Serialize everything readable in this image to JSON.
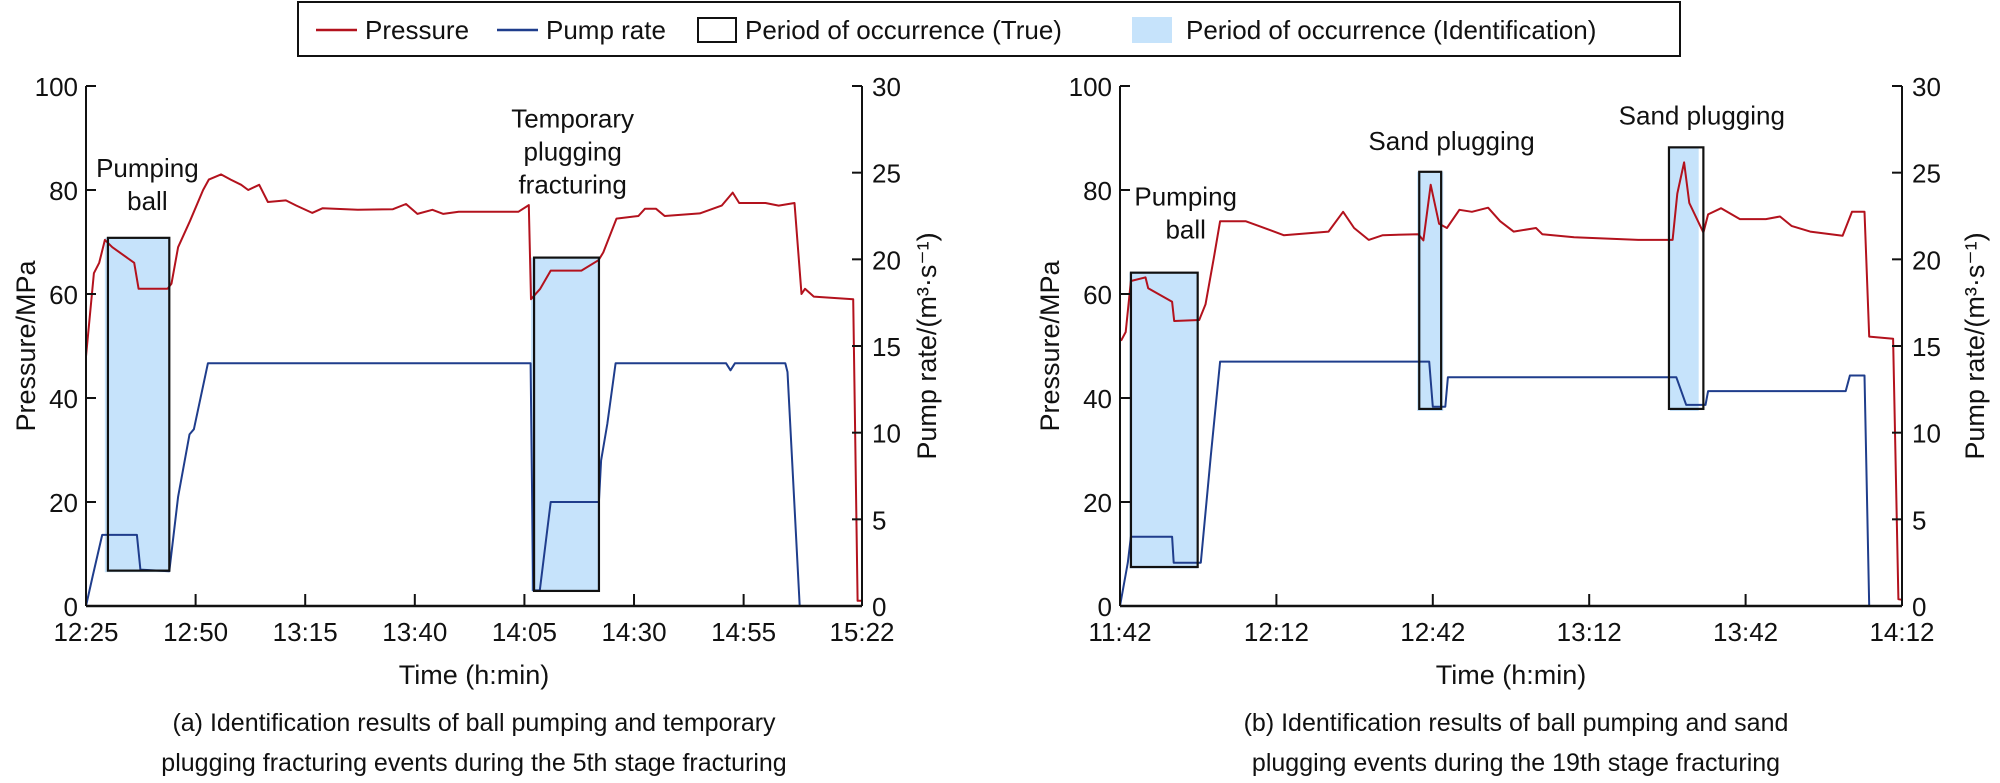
{
  "legend": {
    "pressure": "Pressure",
    "pump_rate": "Pump rate",
    "true_period": "Period of occurrence (True)",
    "identified_period": "Period of occurrence (Identification)"
  },
  "colors": {
    "pressure": "#b3121d",
    "pump_rate": "#1f3d8c",
    "identification_fill": "#c6e3fb",
    "true_outline": "#111111"
  },
  "chart_data": [
    {
      "type": "line",
      "caption_lines": [
        "(a) Identification results of ball pumping and temporary",
        "plugging fracturing events during the 5th stage fracturing"
      ],
      "xlabel": "Time (h:min)",
      "ylabel": "Pressure/MPa",
      "y2label": "Pump rate/(m³·s⁻¹)",
      "x_unit": "minutes after 12:25",
      "xlim": [
        0,
        177
      ],
      "x_ticks": [
        0,
        25,
        50,
        75,
        100,
        125,
        150,
        177
      ],
      "x_tick_labels": [
        "12:25",
        "12:50",
        "13:15",
        "13:40",
        "14:05",
        "14:30",
        "14:55",
        "15:22"
      ],
      "ylim": [
        0,
        100
      ],
      "y_ticks": [
        0,
        20,
        40,
        60,
        80,
        100
      ],
      "y_tick_labels": [
        "0",
        "20",
        "40",
        "60",
        "80",
        "100"
      ],
      "y2lim": [
        0,
        30
      ],
      "y2_ticks": [
        0,
        5,
        10,
        15,
        20,
        25,
        30
      ],
      "y2_tick_labels": [
        "0",
        "5",
        "10",
        "15",
        "20",
        "25",
        "30"
      ],
      "series": [
        {
          "name": "Pressure",
          "axis": "left",
          "points": [
            [
              0,
              48
            ],
            [
              1.8,
              64
            ],
            [
              3,
              66
            ],
            [
              4.3,
              70.4
            ],
            [
              6,
              69
            ],
            [
              11,
              66
            ],
            [
              12,
              61
            ],
            [
              18.6,
              61
            ],
            [
              19.5,
              62
            ],
            [
              21,
              69
            ],
            [
              23.7,
              74
            ],
            [
              26.7,
              80
            ],
            [
              28,
              82
            ],
            [
              30.8,
              83
            ],
            [
              33,
              82
            ],
            [
              35.4,
              81
            ],
            [
              37,
              80
            ],
            [
              39.5,
              81
            ],
            [
              41.5,
              77.7
            ],
            [
              45.6,
              78
            ],
            [
              48,
              77
            ],
            [
              51.6,
              75.6
            ],
            [
              54,
              76.5
            ],
            [
              62,
              76.2
            ],
            [
              70,
              76.3
            ],
            [
              73,
              77.3
            ],
            [
              75.6,
              75.4
            ],
            [
              79,
              76.2
            ],
            [
              81.5,
              75.4
            ],
            [
              85,
              75.8
            ],
            [
              98.6,
              75.8
            ],
            [
              101,
              77.1
            ],
            [
              101.5,
              59
            ],
            [
              103.6,
              61
            ],
            [
              106,
              64.5
            ],
            [
              113,
              64.5
            ],
            [
              116.9,
              66.5
            ],
            [
              118,
              68
            ],
            [
              121,
              74.5
            ],
            [
              126,
              75
            ],
            [
              127.5,
              76.4
            ],
            [
              130,
              76.4
            ],
            [
              132,
              75
            ],
            [
              140,
              75.5
            ],
            [
              145,
              77
            ],
            [
              147.5,
              79.5
            ],
            [
              149,
              77.5
            ],
            [
              155,
              77.5
            ],
            [
              158,
              77
            ],
            [
              161.6,
              77.5
            ],
            [
              163.2,
              60
            ],
            [
              164,
              61
            ],
            [
              166,
              59.5
            ],
            [
              175,
              59
            ],
            [
              176,
              1
            ],
            [
              177,
              1
            ]
          ]
        },
        {
          "name": "Pump rate",
          "axis": "right",
          "points": [
            [
              0,
              0
            ],
            [
              1.5,
              1.7
            ],
            [
              3.7,
              4.1
            ],
            [
              11.6,
              4.1
            ],
            [
              12.4,
              2.1
            ],
            [
              19,
              2
            ],
            [
              21,
              6.3
            ],
            [
              23.6,
              9.9
            ],
            [
              24.6,
              10.2
            ],
            [
              27.8,
              14
            ],
            [
              101.4,
              14
            ],
            [
              102,
              0.9
            ],
            [
              103.5,
              0.9
            ],
            [
              106,
              6
            ],
            [
              117,
              6
            ],
            [
              117.5,
              8.4
            ],
            [
              118.9,
              10.5
            ],
            [
              120.8,
              14
            ],
            [
              146,
              14
            ],
            [
              147,
              13.6
            ],
            [
              148,
              14
            ],
            [
              159.5,
              14
            ],
            [
              160,
              13.5
            ],
            [
              162.8,
              0
            ]
          ]
        }
      ],
      "true_periods": [
        {
          "t_start": 5,
          "t_end": 19,
          "p_top": 70.8,
          "p_bottom": 6.8
        },
        {
          "t_start": 102.2,
          "t_end": 117,
          "p_top": 67,
          "p_bottom": 2.9
        }
      ],
      "identified_periods": [
        {
          "t_start": 4.3,
          "t_end": 19,
          "p_top": 70.8,
          "p_bottom": 6.5
        },
        {
          "t_start": 101.5,
          "t_end": 117,
          "p_top": 67,
          "p_bottom": 2.9
        }
      ],
      "annotations": [
        {
          "lines": [
            "Pumping",
            "ball"
          ],
          "t": 14,
          "p": 82.5
        },
        {
          "lines": [
            "Temporary",
            "plugging",
            "fracturing"
          ],
          "t": 111,
          "p": 92
        }
      ]
    },
    {
      "type": "line",
      "caption_lines": [
        "(b) Identification results of ball pumping and sand",
        "plugging events during the 19th stage fracturing"
      ],
      "xlabel": "Time (h:min)",
      "ylabel": "Pressure/MPa",
      "y2label": "Pump rate/(m³·s⁻¹)",
      "x_unit": "minutes after 11:42",
      "xlim": [
        0,
        150
      ],
      "x_ticks": [
        0,
        30,
        60,
        90,
        120,
        150
      ],
      "x_tick_labels": [
        "11:42",
        "12:12",
        "12:42",
        "13:12",
        "13:42",
        "14:12"
      ],
      "ylim": [
        0,
        100
      ],
      "y_ticks": [
        0,
        20,
        40,
        60,
        80,
        100
      ],
      "y_tick_labels": [
        "0",
        "20",
        "40",
        "60",
        "80",
        "100"
      ],
      "y2lim": [
        0,
        30
      ],
      "y2_ticks": [
        0,
        5,
        10,
        15,
        20,
        25,
        30
      ],
      "y2_tick_labels": [
        "0",
        "5",
        "10",
        "15",
        "20",
        "25",
        "30"
      ],
      "series": [
        {
          "name": "Pressure",
          "axis": "left",
          "points": [
            [
              0.2,
              51
            ],
            [
              1.1,
              52.7
            ],
            [
              2.1,
              62.5
            ],
            [
              4.9,
              63.2
            ],
            [
              5.4,
              61.1
            ],
            [
              10,
              58.5
            ],
            [
              10.4,
              54.8
            ],
            [
              15.2,
              55
            ],
            [
              16.4,
              58
            ],
            [
              18,
              66.9
            ],
            [
              19.2,
              74
            ],
            [
              24.1,
              74
            ],
            [
              26.6,
              73.1
            ],
            [
              31.4,
              71.3
            ],
            [
              40,
              72
            ],
            [
              42.8,
              75.8
            ],
            [
              44.9,
              72.7
            ],
            [
              47.7,
              70.4
            ],
            [
              50.4,
              71.3
            ],
            [
              57.2,
              71.5
            ],
            [
              58.2,
              70.3
            ],
            [
              59.6,
              81
            ],
            [
              61.2,
              73.5
            ],
            [
              62.7,
              72.7
            ],
            [
              65.1,
              76.2
            ],
            [
              67.5,
              75.8
            ],
            [
              70.6,
              76.6
            ],
            [
              72.9,
              74
            ],
            [
              75.5,
              72
            ],
            [
              79.8,
              72.7
            ],
            [
              81,
              71.5
            ],
            [
              87.1,
              70.9
            ],
            [
              99.4,
              70.4
            ],
            [
              106,
              70.4
            ],
            [
              106.9,
              79.3
            ],
            [
              108.2,
              85.3
            ],
            [
              109.2,
              77.5
            ],
            [
              111.9,
              71.8
            ],
            [
              112.8,
              75.3
            ],
            [
              115.3,
              76.5
            ],
            [
              118.9,
              74.4
            ],
            [
              123.9,
              74.4
            ],
            [
              126.6,
              74.9
            ],
            [
              128.8,
              73.1
            ],
            [
              132.4,
              72
            ],
            [
              138.6,
              71.2
            ],
            [
              140.4,
              75.8
            ],
            [
              142.8,
              75.8
            ],
            [
              143.7,
              51.8
            ],
            [
              148.3,
              51.4
            ],
            [
              149.3,
              1.3
            ],
            [
              150,
              1.2
            ]
          ]
        },
        {
          "name": "Pump rate",
          "axis": "right",
          "points": [
            [
              0,
              0
            ],
            [
              1.5,
              2.5
            ],
            [
              2.1,
              4
            ],
            [
              10,
              4
            ],
            [
              10.3,
              2.5
            ],
            [
              15.5,
              2.5
            ],
            [
              17.4,
              8.6
            ],
            [
              19.2,
              14.1
            ],
            [
              59.3,
              14.1
            ],
            [
              60,
              11.5
            ],
            [
              62.4,
              11.5
            ],
            [
              62.9,
              13.2
            ],
            [
              106.7,
              13.2
            ],
            [
              108.6,
              11.6
            ],
            [
              112.3,
              11.6
            ],
            [
              112.8,
              12.4
            ],
            [
              139.2,
              12.4
            ],
            [
              140,
              13.3
            ],
            [
              142.8,
              13.3
            ],
            [
              143.7,
              0
            ]
          ]
        }
      ],
      "true_periods": [
        {
          "t_start": 2.1,
          "t_end": 14.9,
          "p_top": 64.1,
          "p_bottom": 7.5
        },
        {
          "t_start": 57.4,
          "t_end": 61.6,
          "p_top": 83.5,
          "p_bottom": 37.9
        },
        {
          "t_start": 105.3,
          "t_end": 111.9,
          "p_top": 88.2,
          "p_bottom": 37.9
        }
      ],
      "identified_periods": [
        {
          "t_start": 1.8,
          "t_end": 14.9,
          "p_top": 64.1,
          "p_bottom": 7.2
        },
        {
          "t_start": 57,
          "t_end": 62,
          "p_top": 83.5,
          "p_bottom": 37.5
        },
        {
          "t_start": 105.5,
          "t_end": 111,
          "p_top": 88.2,
          "p_bottom": 37.5
        }
      ],
      "annotations": [
        {
          "lines": [
            "Pumping",
            "ball"
          ],
          "t": 12.6,
          "p": 77
        },
        {
          "lines": [
            "Sand plugging"
          ],
          "t": 63.6,
          "p": 87.7
        },
        {
          "lines": [
            "Sand plugging"
          ],
          "t": 111.6,
          "p": 92.6
        }
      ]
    }
  ]
}
